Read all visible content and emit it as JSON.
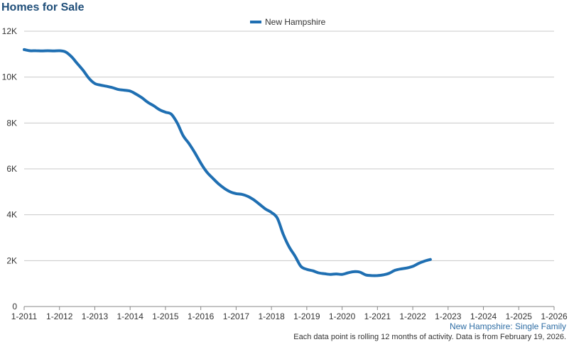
{
  "chart_data": {
    "type": "line",
    "title": "Homes for Sale",
    "xlabel": "",
    "ylabel": "",
    "ylim": [
      0,
      12000
    ],
    "yticks": [
      0,
      2000,
      4000,
      6000,
      8000,
      10000,
      12000
    ],
    "ytick_labels": [
      "0",
      "2K",
      "4K",
      "6K",
      "8K",
      "10K",
      "12K"
    ],
    "x_tick_labels": [
      "1-2011",
      "1-2012",
      "1-2013",
      "1-2014",
      "1-2015",
      "1-2016",
      "1-2017",
      "1-2018",
      "1-2019",
      "1-2020",
      "1-2021",
      "1-2022",
      "1-2023",
      "1-2024",
      "1-2025",
      "1-2026"
    ],
    "grid": "horizontal",
    "legend_position": "top-center",
    "series": [
      {
        "name": "New Hampshire",
        "color": "#1f6fb2",
        "points": [
          [
            "1-2011",
            11200
          ],
          [
            "3-2011",
            11150
          ],
          [
            "5-2011",
            11150
          ],
          [
            "7-2011",
            11140
          ],
          [
            "9-2011",
            11150
          ],
          [
            "11-2011",
            11140
          ],
          [
            "1-2012",
            11150
          ],
          [
            "3-2012",
            11100
          ],
          [
            "5-2012",
            10900
          ],
          [
            "7-2012",
            10600
          ],
          [
            "9-2012",
            10300
          ],
          [
            "11-2012",
            9950
          ],
          [
            "1-2013",
            9720
          ],
          [
            "3-2013",
            9650
          ],
          [
            "5-2013",
            9600
          ],
          [
            "7-2013",
            9540
          ],
          [
            "9-2013",
            9460
          ],
          [
            "11-2013",
            9430
          ],
          [
            "1-2014",
            9390
          ],
          [
            "3-2014",
            9260
          ],
          [
            "5-2014",
            9100
          ],
          [
            "7-2014",
            8900
          ],
          [
            "9-2014",
            8750
          ],
          [
            "11-2014",
            8580
          ],
          [
            "1-2015",
            8470
          ],
          [
            "3-2015",
            8380
          ],
          [
            "5-2015",
            8000
          ],
          [
            "7-2015",
            7450
          ],
          [
            "9-2015",
            7100
          ],
          [
            "11-2015",
            6700
          ],
          [
            "1-2016",
            6250
          ],
          [
            "3-2016",
            5870
          ],
          [
            "5-2016",
            5600
          ],
          [
            "7-2016",
            5350
          ],
          [
            "9-2016",
            5150
          ],
          [
            "11-2016",
            5000
          ],
          [
            "1-2017",
            4920
          ],
          [
            "3-2017",
            4890
          ],
          [
            "5-2017",
            4800
          ],
          [
            "7-2017",
            4650
          ],
          [
            "9-2017",
            4450
          ],
          [
            "11-2017",
            4250
          ],
          [
            "1-2018",
            4100
          ],
          [
            "3-2018",
            3850
          ],
          [
            "5-2018",
            3150
          ],
          [
            "7-2018",
            2600
          ],
          [
            "9-2018",
            2200
          ],
          [
            "11-2018",
            1750
          ],
          [
            "1-2019",
            1620
          ],
          [
            "3-2019",
            1560
          ],
          [
            "5-2019",
            1470
          ],
          [
            "7-2019",
            1430
          ],
          [
            "9-2019",
            1400
          ],
          [
            "11-2019",
            1420
          ],
          [
            "1-2020",
            1400
          ],
          [
            "3-2020",
            1470
          ],
          [
            "5-2020",
            1520
          ],
          [
            "7-2020",
            1500
          ],
          [
            "9-2020",
            1380
          ],
          [
            "11-2020",
            1350
          ],
          [
            "1-2021",
            1350
          ],
          [
            "3-2021",
            1380
          ],
          [
            "5-2021",
            1450
          ],
          [
            "7-2021",
            1580
          ],
          [
            "9-2021",
            1640
          ],
          [
            "11-2021",
            1680
          ],
          [
            "1-2022",
            1750
          ],
          [
            "3-2022",
            1880
          ],
          [
            "5-2022",
            1980
          ],
          [
            "7-2022",
            2050
          ]
        ]
      }
    ]
  },
  "footer": {
    "source": "New Hampshire: Single Family",
    "note": "Each data point is rolling 12 months of activity. Data is from February 19, 2026."
  }
}
